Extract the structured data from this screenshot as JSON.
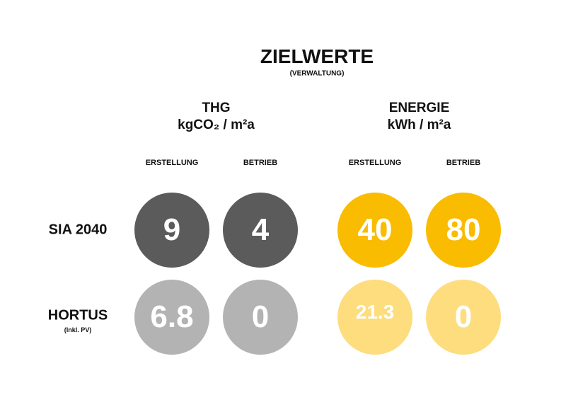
{
  "header": {
    "title": "ZIELWERTE",
    "subtitle": "(VERWALTUNG)"
  },
  "groups": [
    {
      "title": "THG",
      "unit": "kgCO₂ / m²a",
      "columns": [
        "ERSTELLUNG",
        "BETRIEB"
      ]
    },
    {
      "title": "ENERGIE",
      "unit": "kWh / m²a",
      "columns": [
        "ERSTELLUNG",
        "BETRIEB"
      ]
    }
  ],
  "rows": [
    {
      "label": "SIA 2040",
      "values": [
        9,
        4,
        40,
        80
      ]
    },
    {
      "label": "HORTUS",
      "note": "(Inkl. PV)",
      "values": [
        6.8,
        0,
        21.3,
        0
      ]
    }
  ]
}
